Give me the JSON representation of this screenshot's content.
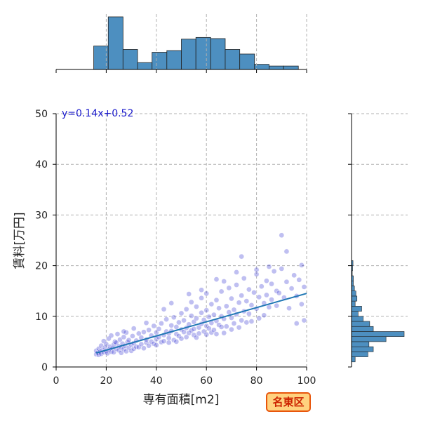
{
  "chart_data": {
    "type": "scatter",
    "xlabel": "専有面積[m2]",
    "ylabel": "賃料[万円]",
    "xlim": [
      0,
      100
    ],
    "ylim": [
      0,
      50
    ],
    "x_ticks": [
      0,
      20,
      40,
      60,
      80,
      100
    ],
    "y_ticks": [
      0,
      10,
      20,
      30,
      40,
      50
    ],
    "grid": true,
    "equation_label": "y=0.14x+0.52",
    "regression": {
      "slope": 0.14,
      "intercept": 0.52,
      "x_range": [
        16,
        100
      ]
    },
    "badge": "名東区",
    "colors": {
      "points": "#1a1acc",
      "regression_line": "#1f77b4",
      "histogram": "#4d8fc0",
      "equation": "#1a1acc",
      "badge_fill": "#ffd27f",
      "badge_border": "#e8560c",
      "badge_text": "#cc2200"
    },
    "top_histogram": {
      "bin_edges": [
        15,
        20.8,
        26.7,
        32.5,
        38.3,
        44.2,
        50,
        55.8,
        61.7,
        67.5,
        73.3,
        79.2,
        85,
        90.8,
        96.7
      ],
      "counts": [
        41,
        92,
        35,
        12,
        30,
        33,
        53,
        56,
        54,
        35,
        27,
        9,
        6,
        6
      ]
    },
    "right_histogram": {
      "bin_edges": [
        1,
        2,
        3,
        4,
        5,
        6,
        7,
        8,
        9,
        10,
        11,
        12,
        13,
        14,
        15,
        16,
        17,
        18,
        19,
        20,
        21
      ],
      "counts": [
        10,
        45,
        60,
        48,
        95,
        145,
        60,
        50,
        32,
        18,
        28,
        10,
        15,
        12,
        8,
        5,
        5,
        2,
        3,
        4
      ]
    },
    "points": [
      [
        16,
        2.5
      ],
      [
        16,
        3.2
      ],
      [
        16.5,
        2.8
      ],
      [
        17,
        2.4
      ],
      [
        17,
        3.6
      ],
      [
        17.5,
        3.0
      ],
      [
        18,
        2.6
      ],
      [
        18,
        4.2
      ],
      [
        18.5,
        3.3
      ],
      [
        19,
        2.9
      ],
      [
        19,
        5.1
      ],
      [
        19.5,
        3.8
      ],
      [
        20,
        3.1
      ],
      [
        20,
        4.5
      ],
      [
        20.5,
        2.7
      ],
      [
        21,
        3.4
      ],
      [
        21,
        5.6
      ],
      [
        21.5,
        4.0
      ],
      [
        22,
        3.0
      ],
      [
        22,
        6.2
      ],
      [
        22.5,
        3.7
      ],
      [
        23,
        4.4
      ],
      [
        23,
        2.9
      ],
      [
        23.5,
        5.0
      ],
      [
        24,
        3.6
      ],
      [
        24,
        4.8
      ],
      [
        24.5,
        6.5
      ],
      [
        25,
        3.3
      ],
      [
        25,
        4.1
      ],
      [
        25.5,
        5.4
      ],
      [
        26,
        3.9
      ],
      [
        26,
        2.8
      ],
      [
        26.5,
        4.6
      ],
      [
        27,
        3.5
      ],
      [
        27,
        5.9
      ],
      [
        27.5,
        4.2
      ],
      [
        28,
        3.1
      ],
      [
        28,
        6.8
      ],
      [
        28.5,
        4.9
      ],
      [
        29,
        3.8
      ],
      [
        29,
        5.3
      ],
      [
        30,
        4.4
      ],
      [
        30,
        3.2
      ],
      [
        30.5,
        6.1
      ],
      [
        31,
        4.7
      ],
      [
        31,
        3.6
      ],
      [
        32,
        5.2
      ],
      [
        32,
        4.0
      ],
      [
        33,
        3.9
      ],
      [
        33,
        6.6
      ],
      [
        34,
        4.5
      ],
      [
        34,
        5.8
      ],
      [
        35,
        3.7
      ],
      [
        35,
        6.9
      ],
      [
        36,
        4.8
      ],
      [
        36,
        5.4
      ],
      [
        37,
        4.2
      ],
      [
        37,
        7.3
      ],
      [
        38,
        5.0
      ],
      [
        38,
        6.2
      ],
      [
        39,
        4.6
      ],
      [
        39,
        8.1
      ],
      [
        40,
        5.5
      ],
      [
        40,
        6.8
      ],
      [
        40,
        4.3
      ],
      [
        41,
        7.5
      ],
      [
        41,
        5.9
      ],
      [
        42,
        4.9
      ],
      [
        42,
        8.6
      ],
      [
        43,
        6.3
      ],
      [
        43,
        5.1
      ],
      [
        44,
        7.0
      ],
      [
        44,
        9.4
      ],
      [
        45,
        5.7
      ],
      [
        45,
        6.6
      ],
      [
        45,
        4.8
      ],
      [
        46,
        8.2
      ],
      [
        46,
        7.1
      ],
      [
        47,
        5.3
      ],
      [
        47,
        9.8
      ],
      [
        48,
        6.5
      ],
      [
        48,
        7.9
      ],
      [
        48,
        5.0
      ],
      [
        49,
        8.8
      ],
      [
        49,
        6.1
      ],
      [
        50,
        7.4
      ],
      [
        50,
        10.6
      ],
      [
        50,
        5.6
      ],
      [
        51,
        6.9
      ],
      [
        51,
        9.2
      ],
      [
        52,
        7.7
      ],
      [
        52,
        5.9
      ],
      [
        52,
        11.4
      ],
      [
        53,
        8.4
      ],
      [
        53,
        6.7
      ],
      [
        54,
        7.2
      ],
      [
        54,
        10.1
      ],
      [
        54,
        12.8
      ],
      [
        55,
        6.3
      ],
      [
        55,
        8.9
      ],
      [
        55,
        7.5
      ],
      [
        56,
        9.6
      ],
      [
        56,
        5.8
      ],
      [
        56,
        11.9
      ],
      [
        57,
        7.8
      ],
      [
        57,
        6.6
      ],
      [
        58,
        8.5
      ],
      [
        58,
        10.7
      ],
      [
        58,
        13.6
      ],
      [
        59,
        7.0
      ],
      [
        59,
        9.3
      ],
      [
        60,
        6.4
      ],
      [
        60,
        8.1
      ],
      [
        60,
        11.2
      ],
      [
        60,
        14.5
      ],
      [
        61,
        7.6
      ],
      [
        61,
        9.9
      ],
      [
        62,
        6.8
      ],
      [
        62,
        12.4
      ],
      [
        62,
        8.7
      ],
      [
        63,
        10.3
      ],
      [
        63,
        7.3
      ],
      [
        64,
        9.1
      ],
      [
        64,
        13.2
      ],
      [
        64,
        6.5
      ],
      [
        65,
        8.3
      ],
      [
        65,
        11.6
      ],
      [
        66,
        7.9
      ],
      [
        66,
        14.9
      ],
      [
        66,
        10.0
      ],
      [
        67,
        6.7
      ],
      [
        67,
        9.5
      ],
      [
        68,
        12.0
      ],
      [
        68,
        8.0
      ],
      [
        69,
        10.8
      ],
      [
        69,
        15.6
      ],
      [
        70,
        7.4
      ],
      [
        70,
        9.7
      ],
      [
        70,
        13.5
      ],
      [
        71,
        11.3
      ],
      [
        71,
        8.6
      ],
      [
        72,
        16.2
      ],
      [
        72,
        10.4
      ],
      [
        73,
        12.7
      ],
      [
        73,
        7.8
      ],
      [
        74,
        9.2
      ],
      [
        74,
        14.1
      ],
      [
        75,
        11.0
      ],
      [
        75,
        17.5
      ],
      [
        76,
        8.8
      ],
      [
        76,
        13.0
      ],
      [
        77,
        10.5
      ],
      [
        77,
        15.3
      ],
      [
        78,
        12.2
      ],
      [
        78,
        9.0
      ],
      [
        79,
        14.7
      ],
      [
        80,
        11.5
      ],
      [
        80,
        18.3
      ],
      [
        81,
        13.8
      ],
      [
        81,
        9.6
      ],
      [
        82,
        15.9
      ],
      [
        83,
        12.6
      ],
      [
        83,
        10.2
      ],
      [
        84,
        17.0
      ],
      [
        84,
        14.2
      ],
      [
        85,
        11.8
      ],
      [
        86,
        16.4
      ],
      [
        86,
        13.3
      ],
      [
        87,
        18.9
      ],
      [
        88,
        12.1
      ],
      [
        88,
        15.0
      ],
      [
        89,
        14.6
      ],
      [
        90,
        19.4
      ],
      [
        90,
        26.0
      ],
      [
        91,
        13.7
      ],
      [
        92,
        16.8
      ],
      [
        92,
        22.8
      ],
      [
        93,
        11.6
      ],
      [
        94,
        15.5
      ],
      [
        95,
        18.1
      ],
      [
        96,
        8.6
      ],
      [
        96,
        14.0
      ],
      [
        97,
        17.2
      ],
      [
        98,
        12.4
      ],
      [
        98,
        20.1
      ],
      [
        99,
        9.2
      ],
      [
        99,
        15.8
      ],
      [
        74,
        21.8
      ],
      [
        80,
        19.2
      ],
      [
        85,
        19.8
      ],
      [
        64,
        17.3
      ],
      [
        67,
        16.9
      ],
      [
        72,
        18.7
      ],
      [
        58,
        15.2
      ],
      [
        53,
        14.4
      ],
      [
        46,
        12.6
      ],
      [
        43,
        11.4
      ],
      [
        36,
        8.7
      ],
      [
        31,
        7.6
      ],
      [
        27,
        7.0
      ]
    ]
  }
}
